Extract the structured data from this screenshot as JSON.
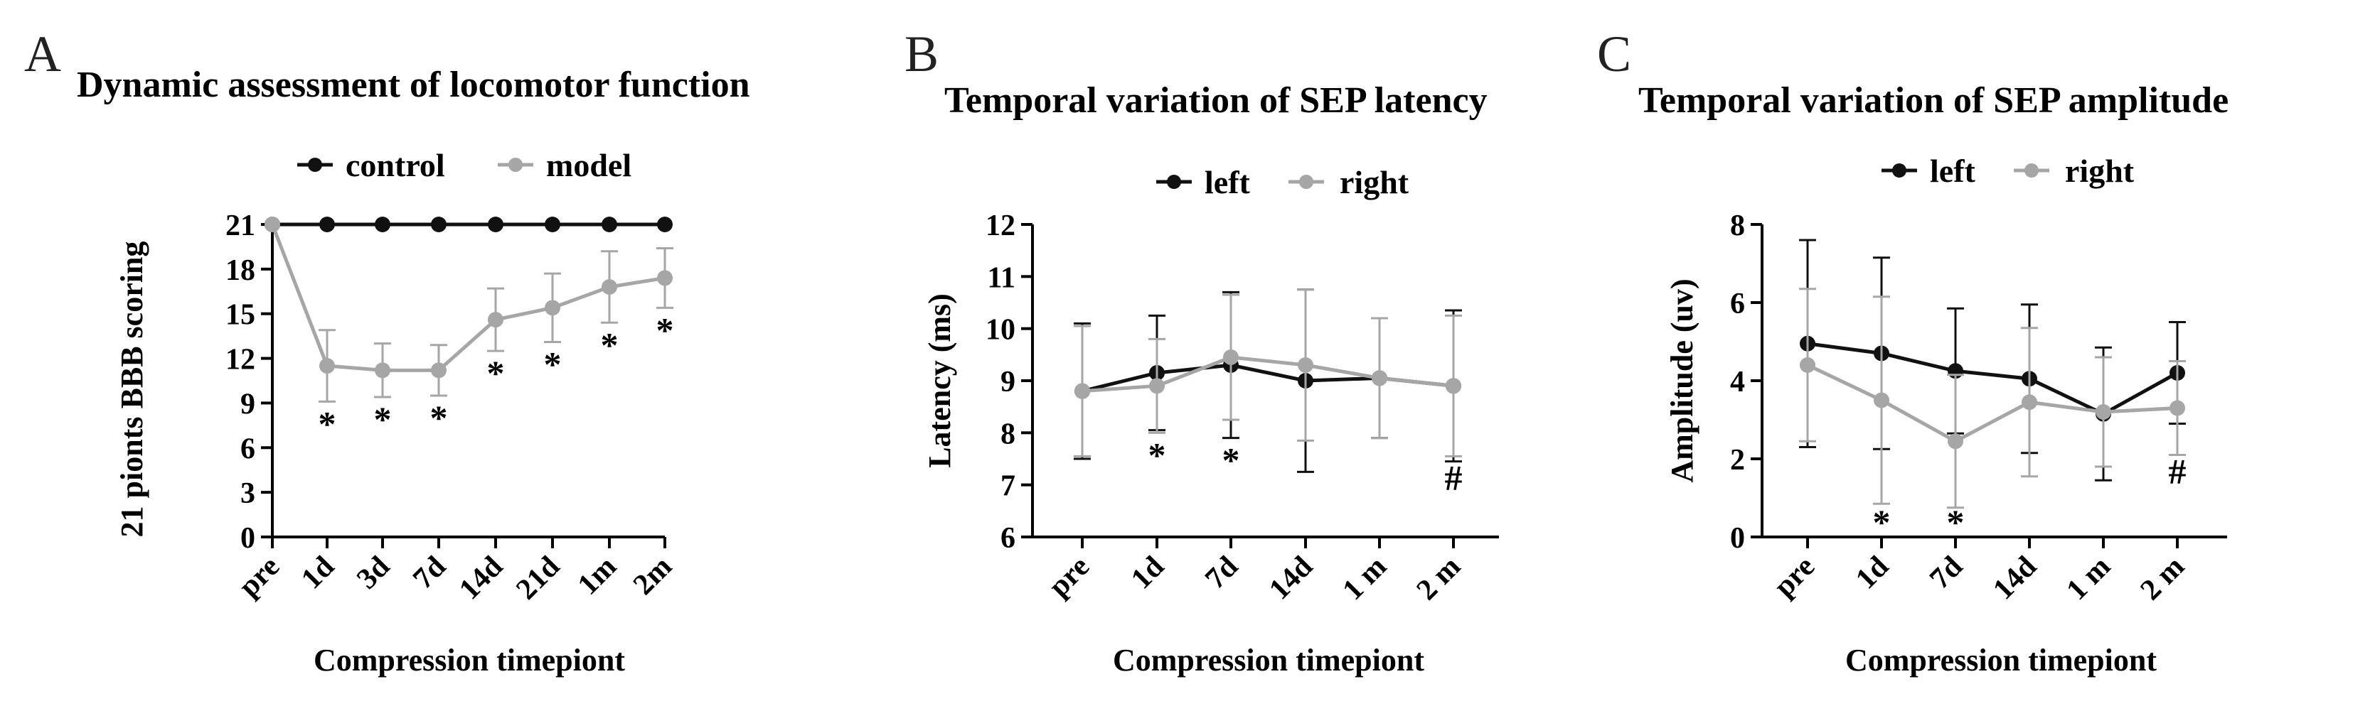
{
  "colors": {
    "dark": "#111111",
    "light": "#a6a6a6",
    "axis": "#000000"
  },
  "chart_data": [
    {
      "type": "line",
      "panel": "A",
      "title": "Dynamic assessment of locomotor function",
      "xlabel": "Compression timepiont",
      "ylabel": "21 pionts BBB scoring",
      "categories": [
        "pre",
        "1d",
        "3d",
        "7d",
        "14d",
        "21d",
        "1m",
        "2m"
      ],
      "ylim": [
        0,
        21
      ],
      "yticks": [
        "0",
        "3",
        "6",
        "9",
        "12",
        "15",
        "18",
        "21"
      ],
      "series": [
        {
          "name": "control",
          "color": "dark",
          "values": [
            21,
            21,
            21,
            21,
            21,
            21,
            21,
            21
          ],
          "errors": [
            0,
            0,
            0,
            0,
            0,
            0,
            0,
            0
          ]
        },
        {
          "name": "model",
          "color": "light",
          "values": [
            21,
            11.5,
            11.2,
            11.2,
            14.6,
            15.4,
            16.8,
            17.4
          ],
          "errors": [
            0,
            2.4,
            1.8,
            1.7,
            2.1,
            2.3,
            2.4,
            2.0
          ]
        }
      ],
      "annotations": [
        {
          "index": 1,
          "symbol": "*"
        },
        {
          "index": 2,
          "symbol": "*"
        },
        {
          "index": 3,
          "symbol": "*"
        },
        {
          "index": 4,
          "symbol": "*"
        },
        {
          "index": 5,
          "symbol": "*"
        },
        {
          "index": 6,
          "symbol": "*"
        },
        {
          "index": 7,
          "symbol": "*"
        }
      ]
    },
    {
      "type": "line",
      "panel": "B",
      "title": "Temporal  variation of SEP latency",
      "xlabel": "Compression timepiont",
      "ylabel": "Latency (ms)",
      "categories": [
        "pre",
        "1d",
        "7d",
        "14d",
        "1 m",
        "2 m"
      ],
      "ylim": [
        6,
        12
      ],
      "yticks": [
        "6",
        "7",
        "8",
        "9",
        "10",
        "11",
        "12"
      ],
      "series": [
        {
          "name": "left",
          "color": "dark",
          "values": [
            8.8,
            9.15,
            9.3,
            9.0,
            9.05,
            8.9
          ],
          "errors": [
            1.3,
            1.1,
            1.4,
            1.75,
            1.15,
            1.45
          ]
        },
        {
          "name": "right",
          "color": "light",
          "values": [
            8.8,
            8.9,
            9.45,
            9.3,
            9.05,
            8.9
          ],
          "errors": [
            1.25,
            0.9,
            1.2,
            1.45,
            1.15,
            1.35
          ]
        }
      ],
      "annotations": [
        {
          "index": 1,
          "symbol": "*"
        },
        {
          "index": 2,
          "symbol": "*"
        },
        {
          "index": 5,
          "symbol": "#"
        }
      ]
    },
    {
      "type": "line",
      "panel": "C",
      "title": "Temporal  variation of SEP amplitude",
      "xlabel": "Compression timepiont",
      "ylabel": "Amplitude (uv)",
      "categories": [
        "pre",
        "1d",
        "7d",
        "14d",
        "1 m",
        "2 m"
      ],
      "ylim": [
        0,
        8
      ],
      "yticks": [
        "0",
        "2",
        "4",
        "6",
        "8"
      ],
      "series": [
        {
          "name": "left",
          "color": "dark",
          "values": [
            4.95,
            4.7,
            4.25,
            4.05,
            3.15,
            4.2
          ],
          "errors": [
            2.65,
            2.45,
            1.6,
            1.9,
            1.7,
            1.3
          ]
        },
        {
          "name": "right",
          "color": "light",
          "values": [
            4.4,
            3.5,
            2.45,
            3.45,
            3.2,
            3.3
          ],
          "errors": [
            1.95,
            2.65,
            1.7,
            1.9,
            1.4,
            1.2
          ]
        }
      ],
      "annotations": [
        {
          "index": 1,
          "symbol": "*"
        },
        {
          "index": 2,
          "symbol": "*"
        },
        {
          "index": 5,
          "symbol": "#"
        }
      ]
    }
  ]
}
